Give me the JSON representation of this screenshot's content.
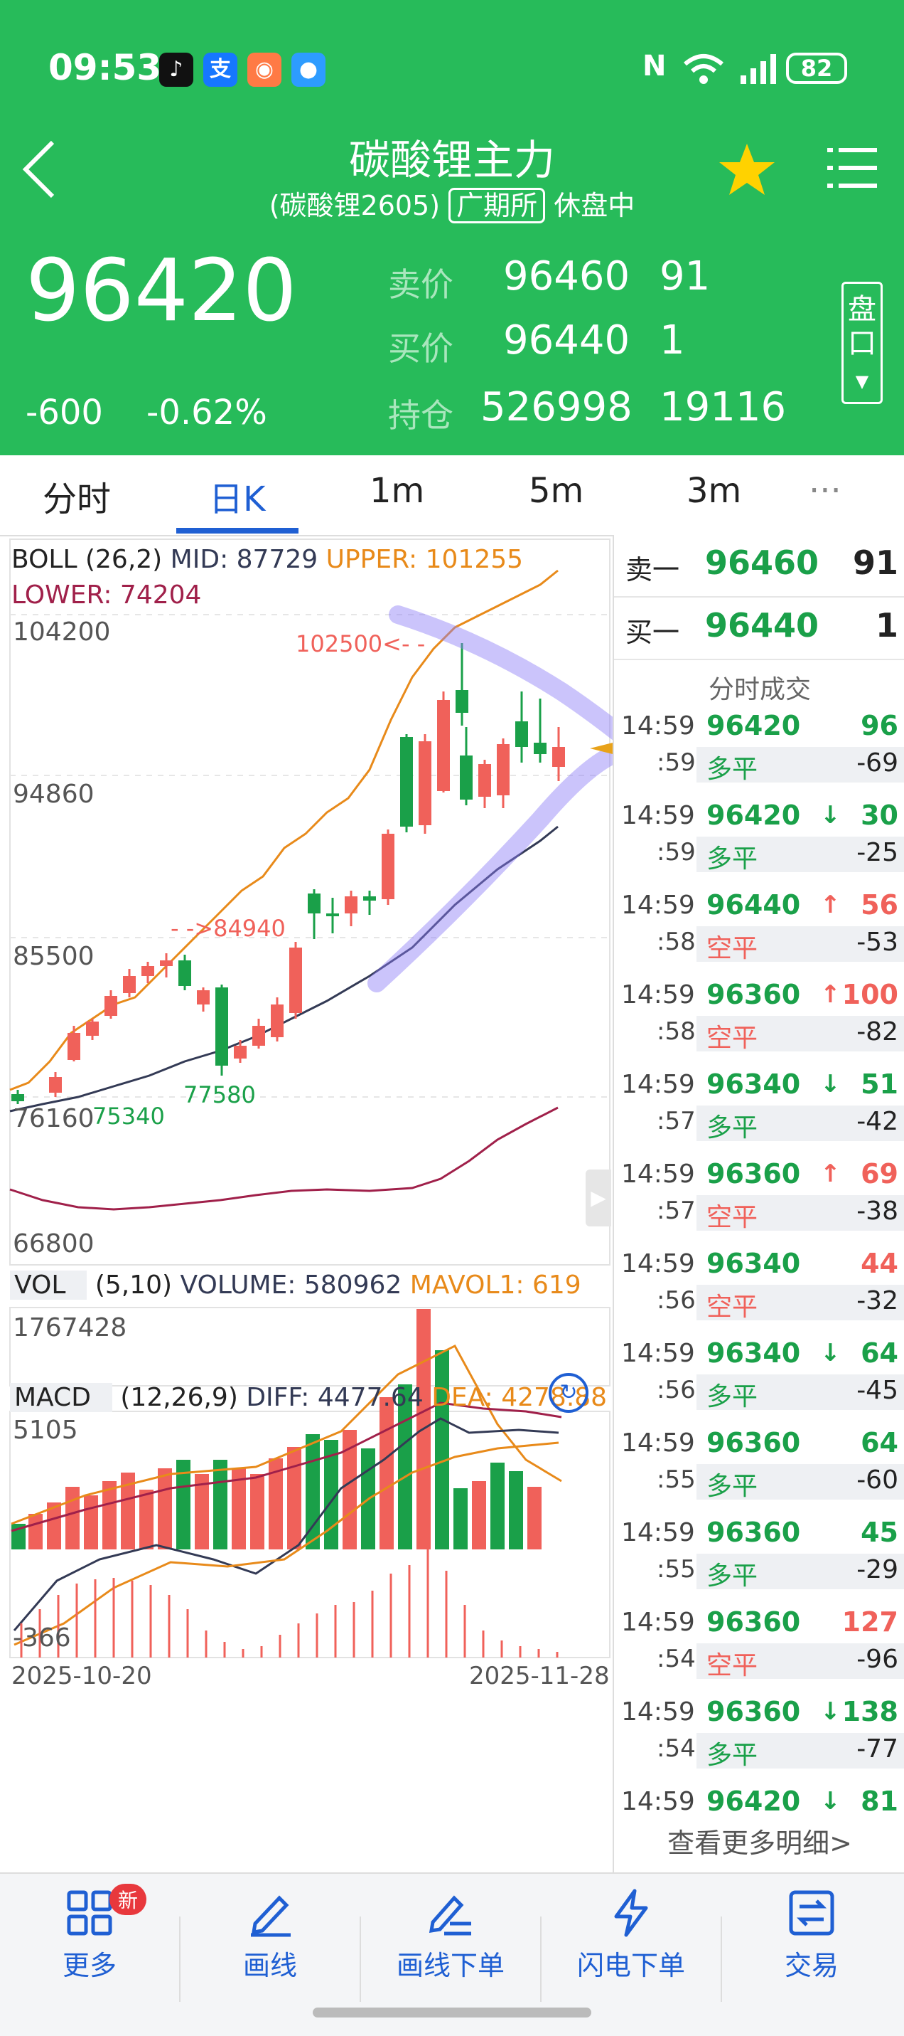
{
  "status_bar": {
    "time": "09:53",
    "battery": "82",
    "apps": [
      "tiktok-icon",
      "alipay-icon",
      "game-icon",
      "message-icon"
    ]
  },
  "header": {
    "title": "碳酸锂主力",
    "subtitle_contract": "(碳酸锂2605)",
    "subtitle_exchange": "广期所",
    "subtitle_status": "休盘中",
    "last_price": "96420",
    "change": "-600",
    "change_pct": "-0.62%",
    "ask_label": "卖价",
    "ask_price": "96460",
    "ask_vol": "91",
    "bid_label": "买价",
    "bid_price": "96440",
    "bid_vol": "1",
    "oi_label": "持仓",
    "oi_value": "526998",
    "oi_change": "19116",
    "pankou_label": "盘口"
  },
  "tabs": [
    "分时",
    "日K",
    "1m",
    "5m",
    "3m",
    "···"
  ],
  "active_tab": 1,
  "kline": {
    "boll_label": "BOLL",
    "boll_params": "(26,2)",
    "mid": "MID: 87729",
    "upper": "UPPER: 101255",
    "lower": "LOWER: 74204",
    "y_labels": [
      "104200",
      "94860",
      "85500",
      "76160",
      "66800"
    ],
    "ann_high": "102500<- -",
    "ann_mid": "- ->84940",
    "ann_low1": "75340",
    "ann_low2": "77580"
  },
  "volume": {
    "label": "VOL",
    "params": "(5,10)",
    "volume": "VOLUME: 580962",
    "mavol": "MAVOL1: 619",
    "y_label": "1767428"
  },
  "macd": {
    "label": "MACD",
    "params": "(12,26,9)",
    "diff": "DIFF: 4477.64",
    "dea": "DEA: 4278.88",
    "y_top": "5105",
    "y_bottom": "-366",
    "date_start": "2025-10-20",
    "date_end": "2025-11-28"
  },
  "orderbook": {
    "ask_label": "卖一",
    "ask_price": "96460",
    "ask_vol": "91",
    "bid_label": "买一",
    "bid_price": "96440",
    "bid_vol": "1",
    "trades_title": "分时成交",
    "more_link": "查看更多明细>"
  },
  "trades": [
    {
      "t1": "14:59",
      "t2": ":59",
      "price": "96420",
      "arrow": "",
      "qty": "96",
      "qty_color": "green",
      "type": "多平",
      "type_color": "green",
      "chg": "-69"
    },
    {
      "t1": "14:59",
      "t2": ":59",
      "price": "96420",
      "arrow": "↓",
      "qty": "30",
      "qty_color": "green",
      "type": "多平",
      "type_color": "green",
      "chg": "-25"
    },
    {
      "t1": "14:59",
      "t2": ":58",
      "price": "96440",
      "arrow": "↑",
      "qty": "56",
      "qty_color": "red",
      "type": "空平",
      "type_color": "red",
      "chg": "-53"
    },
    {
      "t1": "14:59",
      "t2": ":58",
      "price": "96360",
      "arrow": "↑",
      "qty": "100",
      "qty_color": "red",
      "type": "空平",
      "type_color": "red",
      "chg": "-82"
    },
    {
      "t1": "14:59",
      "t2": ":57",
      "price": "96340",
      "arrow": "↓",
      "qty": "51",
      "qty_color": "green",
      "type": "多平",
      "type_color": "green",
      "chg": "-42"
    },
    {
      "t1": "14:59",
      "t2": ":57",
      "price": "96360",
      "arrow": "↑",
      "qty": "69",
      "qty_color": "red",
      "type": "空平",
      "type_color": "red",
      "chg": "-38"
    },
    {
      "t1": "14:59",
      "t2": ":56",
      "price": "96340",
      "arrow": "",
      "qty": "44",
      "qty_color": "red",
      "type": "空平",
      "type_color": "red",
      "chg": "-32"
    },
    {
      "t1": "14:59",
      "t2": ":56",
      "price": "96340",
      "arrow": "↓",
      "qty": "64",
      "qty_color": "green",
      "type": "多平",
      "type_color": "green",
      "chg": "-45"
    },
    {
      "t1": "14:59",
      "t2": ":55",
      "price": "96360",
      "arrow": "",
      "qty": "64",
      "qty_color": "green",
      "type": "多平",
      "type_color": "green",
      "chg": "-60"
    },
    {
      "t1": "14:59",
      "t2": ":55",
      "price": "96360",
      "arrow": "",
      "qty": "45",
      "qty_color": "green",
      "type": "多平",
      "type_color": "green",
      "chg": "-29"
    },
    {
      "t1": "14:59",
      "t2": ":54",
      "price": "96360",
      "arrow": "",
      "qty": "127",
      "qty_color": "red",
      "type": "空平",
      "type_color": "red",
      "chg": "-96"
    },
    {
      "t1": "14:59",
      "t2": ":54",
      "price": "96360",
      "arrow": "↓",
      "qty": "138",
      "qty_color": "green",
      "type": "多平",
      "type_color": "green",
      "chg": "-77"
    },
    {
      "t1": "14:59",
      "t2": "",
      "price": "96420",
      "arrow": "↓",
      "qty": "81",
      "qty_color": "green",
      "type": "",
      "type_color": "green",
      "chg": ""
    }
  ],
  "bottom_nav": [
    {
      "label": "更多",
      "icon": "grid-icon",
      "badge": "新"
    },
    {
      "label": "画线",
      "icon": "draw-pen-icon"
    },
    {
      "label": "画线下单",
      "icon": "draw-order-icon"
    },
    {
      "label": "闪电下单",
      "icon": "lightning-icon"
    },
    {
      "label": "交易",
      "icon": "trade-icon"
    }
  ],
  "colors": {
    "up": "#f0615a",
    "down": "#1aa049",
    "accent": "#1f5fd3",
    "header": "#27bb5a"
  }
}
